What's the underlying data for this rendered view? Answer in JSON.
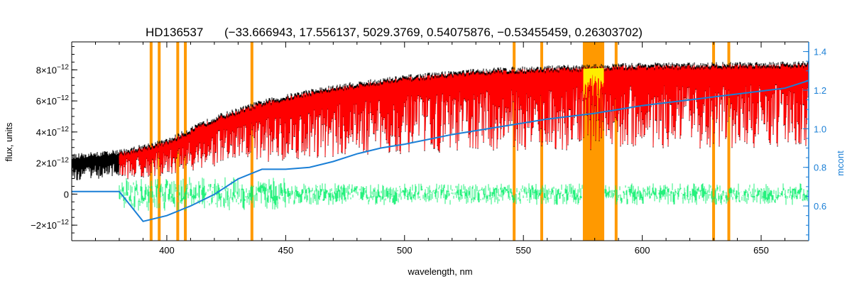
{
  "chart_data": {
    "type": "line",
    "title_star": "HD136537",
    "title_params": "(−33.666943, 17.556137, 5029.3769, 0.54075876, −0.53455459, 0.26303702)",
    "xlabel": "wavelength, nm",
    "ylabel": "flux, units",
    "ylabel_right": "mcont",
    "xlim": [
      360,
      670
    ],
    "ylim": [
      -3e-12,
      9.8e-12
    ],
    "ylim_right": [
      0.42,
      1.45
    ],
    "x_ticks": [
      400,
      450,
      500,
      550,
      600,
      650
    ],
    "x_tick_labels": [
      "400",
      "450",
      "500",
      "550",
      "600",
      "650"
    ],
    "y_ticks": [
      -2e-12,
      0,
      2e-12,
      4e-12,
      6e-12,
      8e-12
    ],
    "y_tick_mantissas": [
      "−2",
      "",
      "2",
      "4",
      "6",
      "8"
    ],
    "y_tick_exponent": "−12",
    "y_tick_zero_label": "0",
    "y_tick_times": "×10",
    "y_right_ticks": [
      0.6,
      0.8,
      1.0,
      1.2,
      1.4
    ],
    "y_right_tick_labels": [
      "0.6",
      "0.8",
      "1.0",
      "1.2",
      "1.4"
    ],
    "masked_lines_nm": [
      393.4,
      396.8,
      404.6,
      407.8,
      435.8,
      546.1,
      557.7,
      589.0,
      630.0,
      636.4
    ],
    "masked_band_nm": [
      575.0,
      584.0
    ],
    "continuum_upper": {
      "x": [
        360,
        380,
        400,
        420,
        440,
        460,
        480,
        500,
        520,
        540,
        560,
        580,
        600,
        620,
        640,
        670
      ],
      "y": [
        2.3e-12,
        2.6e-12,
        3.3e-12,
        4.8e-12,
        5.8e-12,
        6.5e-12,
        7e-12,
        7.4e-12,
        7.7e-12,
        7.9e-12,
        8e-12,
        8.1e-12,
        8.2e-12,
        8.2e-12,
        8.25e-12,
        8.3e-12
      ]
    },
    "series": [
      {
        "color": "#000000",
        "x_range": [
          360,
          670
        ]
      },
      {
        "color": "#ff0000",
        "x_range": [
          380,
          670
        ]
      },
      {
        "color": "#00ee66",
        "x_range": [
          380,
          670
        ]
      },
      {
        "color": "#1a7fd6",
        "axis": "right",
        "x": [
          360,
          380,
          390,
          400,
          410,
          420,
          430,
          440,
          450,
          460,
          470,
          480,
          490,
          500,
          520,
          540,
          560,
          580,
          600,
          620,
          640,
          660,
          670
        ],
        "y": [
          0.675,
          0.675,
          0.52,
          0.55,
          0.6,
          0.66,
          0.74,
          0.79,
          0.79,
          0.8,
          0.83,
          0.87,
          0.9,
          0.92,
          0.97,
          1.01,
          1.05,
          1.08,
          1.12,
          1.15,
          1.18,
          1.21,
          1.25
        ]
      }
    ],
    "colors": {
      "mask": "#ff9900",
      "mask_fill": "#ffee00",
      "right_axis": "#1a7fd6"
    },
    "grid": false
  }
}
